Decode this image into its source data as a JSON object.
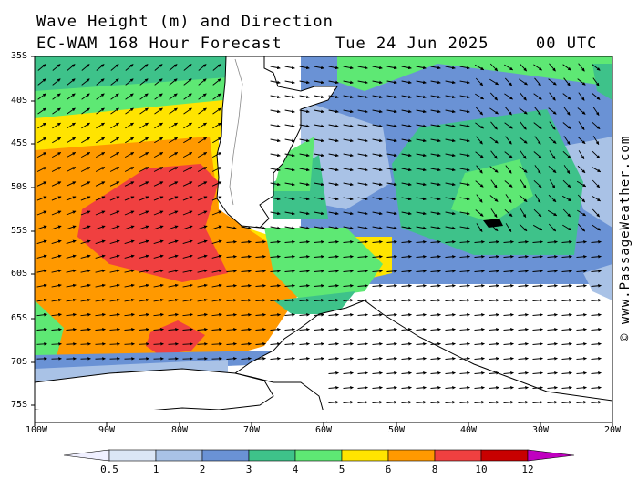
{
  "header": {
    "title_line1": "Wave Height (m) and Direction",
    "title_line2": "EC-WAM 168 Hour Forecast",
    "date": "Tue 24 Jun 2025",
    "time": "00 UTC"
  },
  "axes": {
    "lat_labels": [
      "35S",
      "40S",
      "45S",
      "50S",
      "55S",
      "60S",
      "65S",
      "70S",
      "75S"
    ],
    "lon_labels": [
      "100W",
      "90W",
      "80W",
      "70W",
      "60W",
      "50W",
      "40W",
      "30W",
      "20W"
    ]
  },
  "legend": {
    "ticks": [
      "0.5",
      "1",
      "2",
      "3",
      "4",
      "5",
      "6",
      "8",
      "10",
      "12"
    ],
    "colors": [
      "#f0f0ff",
      "#dbe6f6",
      "#a9c2e6",
      "#6a92d5",
      "#3ec28a",
      "#5ee874",
      "#ffe400",
      "#ff9900",
      "#f04040",
      "#c80000",
      "#c000c0"
    ]
  },
  "credit": "© www.PassageWeather.com"
}
